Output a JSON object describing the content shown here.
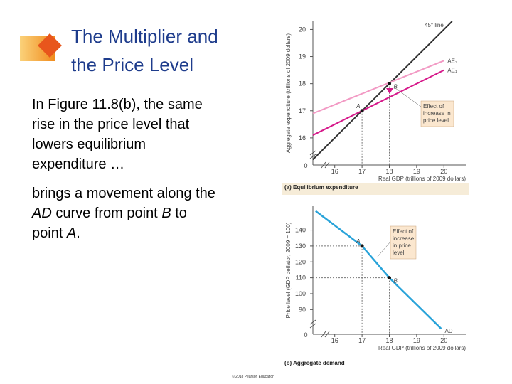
{
  "slide": {
    "title_lines": [
      "The Multiplier and",
      "the Price Level"
    ],
    "paragraph1_lines": [
      "In Figure 11.8(b), the same",
      "rise in the price level that",
      "lowers equilibrium",
      "expenditure …"
    ],
    "paragraph2_lines": [
      [
        {
          "text": "brings a movement along the"
        }
      ],
      [
        {
          "text": "AD",
          "italic": true
        },
        {
          "text": " curve from point "
        },
        {
          "text": "B",
          "italic": true
        },
        {
          "text": " to"
        }
      ],
      [
        {
          "text": "point "
        },
        {
          "text": "A",
          "italic": true
        },
        {
          "text": "."
        }
      ]
    ],
    "footer": "© 2018 Pearson Education"
  },
  "chart_data": [
    {
      "type": "line",
      "caption": "(a) Equilibrium expenditure",
      "xlabel": "Real GDP (trillions of 2009 dollars)",
      "ylabel": "Aggregate expenditure (trillions of 2009 dollars)",
      "origin_label": "0",
      "xlim": [
        15.2,
        20.8
      ],
      "xticks": [
        16,
        17,
        18,
        19,
        20
      ],
      "ylim": [
        15,
        20.3
      ],
      "yticks": [
        16,
        17,
        18,
        19,
        20
      ],
      "series": [
        {
          "name": "45° line",
          "color": "#333333",
          "x": [
            15.2,
            20.3
          ],
          "values": [
            15.2,
            20.3
          ]
        },
        {
          "name": "AE₂",
          "color": "#f29ac4",
          "x": [
            15.2,
            20
          ],
          "values": [
            16.9,
            18.85
          ]
        },
        {
          "name": "AE₁",
          "color": "#d6198a",
          "x": [
            15.2,
            20
          ],
          "values": [
            16.1,
            18.5
          ]
        }
      ],
      "points": [
        {
          "label": "A",
          "x": 17,
          "y": 17
        },
        {
          "label": "B",
          "x": 18,
          "y": 18
        }
      ],
      "annotation_lines": [
        "Effect of",
        "increase in",
        "price level"
      ]
    },
    {
      "type": "line",
      "caption": "(b) Aggregate demand",
      "xlabel": "Real GDP (trillions of 2009 dollars)",
      "ylabel": "Price level (GDP deflator, 2009 = 100)",
      "origin_label": "0",
      "xlim": [
        15.2,
        20.8
      ],
      "xticks": [
        16,
        17,
        18,
        19,
        20
      ],
      "ylim": [
        74.5,
        155
      ],
      "yticks": [
        90,
        100,
        110,
        120,
        130,
        140
      ],
      "series": [
        {
          "name": "AD",
          "color": "#29a3d9",
          "x": [
            15.3,
            17,
            18,
            19.9
          ],
          "values": [
            152,
            130,
            110,
            78
          ]
        }
      ],
      "points": [
        {
          "label": "A",
          "x": 17,
          "y": 130
        },
        {
          "label": "B",
          "x": 18,
          "y": 110
        }
      ],
      "annotation_lines": [
        "Effect of",
        "increase",
        "in price",
        "level"
      ]
    }
  ]
}
